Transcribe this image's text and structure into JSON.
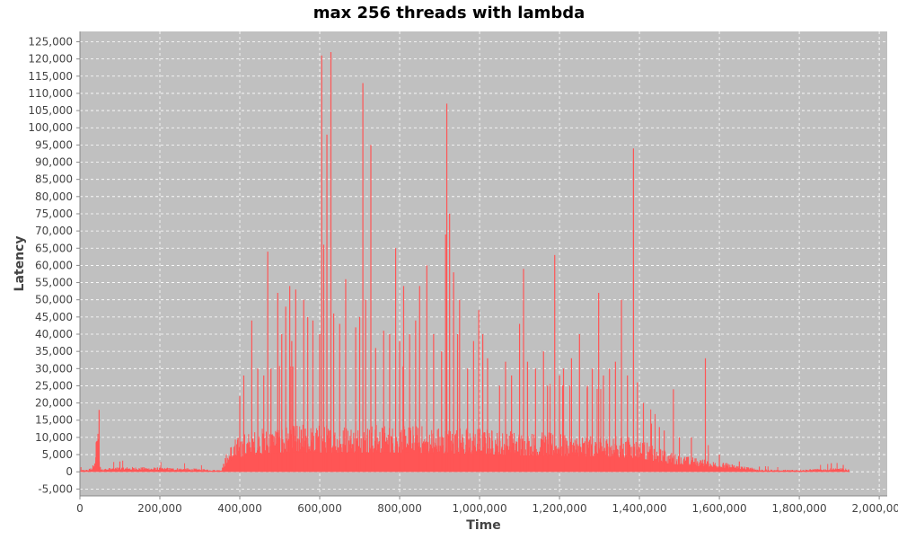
{
  "chart_data": {
    "type": "area",
    "title": "max 256 threads with lambda",
    "xlabel": "Time",
    "ylabel": "Latency",
    "xlim": [
      0,
      2020000
    ],
    "ylim": [
      -7000,
      128000
    ],
    "x_ticks": [
      {
        "value": 0,
        "label": "0"
      },
      {
        "value": 200000,
        "label": "200,000"
      },
      {
        "value": 400000,
        "label": "400,000"
      },
      {
        "value": 600000,
        "label": "600,000"
      },
      {
        "value": 800000,
        "label": "800,000"
      },
      {
        "value": 1000000,
        "label": "1,000,000"
      },
      {
        "value": 1200000,
        "label": "1,200,000"
      },
      {
        "value": 1400000,
        "label": "1,400,000"
      },
      {
        "value": 1600000,
        "label": "1,600,000"
      },
      {
        "value": 1800000,
        "label": "1,800,000"
      },
      {
        "value": 2000000,
        "label": "2,000,000"
      }
    ],
    "y_ticks": [
      {
        "value": -5000,
        "label": "-5,000"
      },
      {
        "value": 0,
        "label": "0"
      },
      {
        "value": 5000,
        "label": "5,000"
      },
      {
        "value": 10000,
        "label": "10,000"
      },
      {
        "value": 15000,
        "label": "15,000"
      },
      {
        "value": 20000,
        "label": "20,000"
      },
      {
        "value": 25000,
        "label": "25,000"
      },
      {
        "value": 30000,
        "label": "30,000"
      },
      {
        "value": 35000,
        "label": "35,000"
      },
      {
        "value": 40000,
        "label": "40,000"
      },
      {
        "value": 45000,
        "label": "45,000"
      },
      {
        "value": 50000,
        "label": "50,000"
      },
      {
        "value": 55000,
        "label": "55,000"
      },
      {
        "value": 60000,
        "label": "60,000"
      },
      {
        "value": 65000,
        "label": "65,000"
      },
      {
        "value": 70000,
        "label": "70,000"
      },
      {
        "value": 75000,
        "label": "75,000"
      },
      {
        "value": 80000,
        "label": "80,000"
      },
      {
        "value": 85000,
        "label": "85,000"
      },
      {
        "value": 90000,
        "label": "90,000"
      },
      {
        "value": 95000,
        "label": "95,000"
      },
      {
        "value": 100000,
        "label": "100,000"
      },
      {
        "value": 105000,
        "label": "105,000"
      },
      {
        "value": 110000,
        "label": "110,000"
      },
      {
        "value": 115000,
        "label": "115,000"
      },
      {
        "value": 120000,
        "label": "120,000"
      },
      {
        "value": 125000,
        "label": "125,000"
      }
    ],
    "grid": true,
    "plot_background": "#c0c0c0",
    "series_color": "#ff5555",
    "x_range": [
      0,
      1925000
    ],
    "baseline_envelope": [
      [
        0,
        600
      ],
      [
        20000,
        700
      ],
      [
        30000,
        1500
      ],
      [
        38000,
        3000
      ],
      [
        40000,
        9000
      ],
      [
        42000,
        15000
      ],
      [
        44000,
        16000
      ],
      [
        46000,
        17500
      ],
      [
        48000,
        9000
      ],
      [
        50000,
        1500
      ],
      [
        60000,
        1000
      ],
      [
        100000,
        1500
      ],
      [
        150000,
        1400
      ],
      [
        200000,
        1300
      ],
      [
        250000,
        1200
      ],
      [
        300000,
        900
      ],
      [
        340000,
        600
      ],
      [
        355000,
        800
      ],
      [
        365000,
        5000
      ],
      [
        375000,
        8000
      ],
      [
        390000,
        10000
      ],
      [
        420000,
        12000
      ],
      [
        460000,
        13000
      ],
      [
        500000,
        14000
      ],
      [
        600000,
        14000
      ],
      [
        700000,
        14000
      ],
      [
        800000,
        14000
      ],
      [
        900000,
        13500
      ],
      [
        1000000,
        13000
      ],
      [
        1100000,
        12000
      ],
      [
        1200000,
        11500
      ],
      [
        1300000,
        11000
      ],
      [
        1400000,
        10000
      ],
      [
        1450000,
        7000
      ],
      [
        1500000,
        5000
      ],
      [
        1550000,
        4000
      ],
      [
        1600000,
        3000
      ],
      [
        1650000,
        2000
      ],
      [
        1700000,
        800
      ],
      [
        1750000,
        600
      ],
      [
        1800000,
        700
      ],
      [
        1850000,
        900
      ],
      [
        1900000,
        1200
      ],
      [
        1925000,
        800
      ]
    ],
    "spikes": [
      [
        48000,
        18000
      ],
      [
        100000,
        3000
      ],
      [
        400000,
        22000
      ],
      [
        410000,
        28000
      ],
      [
        430000,
        44000
      ],
      [
        445000,
        30000
      ],
      [
        460000,
        28000
      ],
      [
        470000,
        64000
      ],
      [
        478000,
        30000
      ],
      [
        495000,
        52000
      ],
      [
        505000,
        40000
      ],
      [
        515000,
        48000
      ],
      [
        525000,
        54000
      ],
      [
        530000,
        38000
      ],
      [
        540000,
        53000
      ],
      [
        560000,
        50000
      ],
      [
        570000,
        45000
      ],
      [
        583000,
        44000
      ],
      [
        600000,
        40000
      ],
      [
        605000,
        121000
      ],
      [
        610000,
        66000
      ],
      [
        618000,
        98000
      ],
      [
        628000,
        122000
      ],
      [
        635000,
        46000
      ],
      [
        650000,
        43000
      ],
      [
        665000,
        56000
      ],
      [
        690000,
        42000
      ],
      [
        700000,
        45000
      ],
      [
        708000,
        113000
      ],
      [
        715000,
        50000
      ],
      [
        728000,
        95000
      ],
      [
        740000,
        36000
      ],
      [
        760000,
        41000
      ],
      [
        775000,
        40000
      ],
      [
        790000,
        65000
      ],
      [
        800000,
        38000
      ],
      [
        810000,
        54000
      ],
      [
        825000,
        40000
      ],
      [
        840000,
        44000
      ],
      [
        850000,
        54000
      ],
      [
        868000,
        60000
      ],
      [
        885000,
        40000
      ],
      [
        905000,
        35000
      ],
      [
        915000,
        69000
      ],
      [
        918000,
        107000
      ],
      [
        925000,
        75000
      ],
      [
        935000,
        58000
      ],
      [
        945000,
        40000
      ],
      [
        950000,
        50000
      ],
      [
        970000,
        30000
      ],
      [
        985000,
        38000
      ],
      [
        998000,
        47000
      ],
      [
        1008000,
        40000
      ],
      [
        1020000,
        33000
      ],
      [
        1050000,
        25000
      ],
      [
        1065000,
        32000
      ],
      [
        1080000,
        28000
      ],
      [
        1100000,
        43000
      ],
      [
        1110000,
        59000
      ],
      [
        1120000,
        32000
      ],
      [
        1140000,
        30000
      ],
      [
        1160000,
        35000
      ],
      [
        1170000,
        25000
      ],
      [
        1188000,
        63000
      ],
      [
        1200000,
        28000
      ],
      [
        1210000,
        30000
      ],
      [
        1230000,
        33000
      ],
      [
        1250000,
        40000
      ],
      [
        1270000,
        25000
      ],
      [
        1282000,
        30000
      ],
      [
        1298000,
        52000
      ],
      [
        1310000,
        28000
      ],
      [
        1325000,
        30000
      ],
      [
        1340000,
        32000
      ],
      [
        1355000,
        50000
      ],
      [
        1370000,
        28000
      ],
      [
        1385000,
        94000
      ],
      [
        1395000,
        26000
      ],
      [
        1410000,
        20000
      ],
      [
        1430000,
        14000
      ],
      [
        1450000,
        13000
      ],
      [
        1462000,
        12000
      ],
      [
        1485000,
        24000
      ],
      [
        1500000,
        10000
      ],
      [
        1530000,
        10000
      ],
      [
        1565000,
        33000
      ],
      [
        1600000,
        5000
      ],
      [
        1650000,
        3000
      ],
      [
        1700000,
        1500
      ],
      [
        1880000,
        2500
      ],
      [
        1910000,
        2000
      ]
    ]
  }
}
